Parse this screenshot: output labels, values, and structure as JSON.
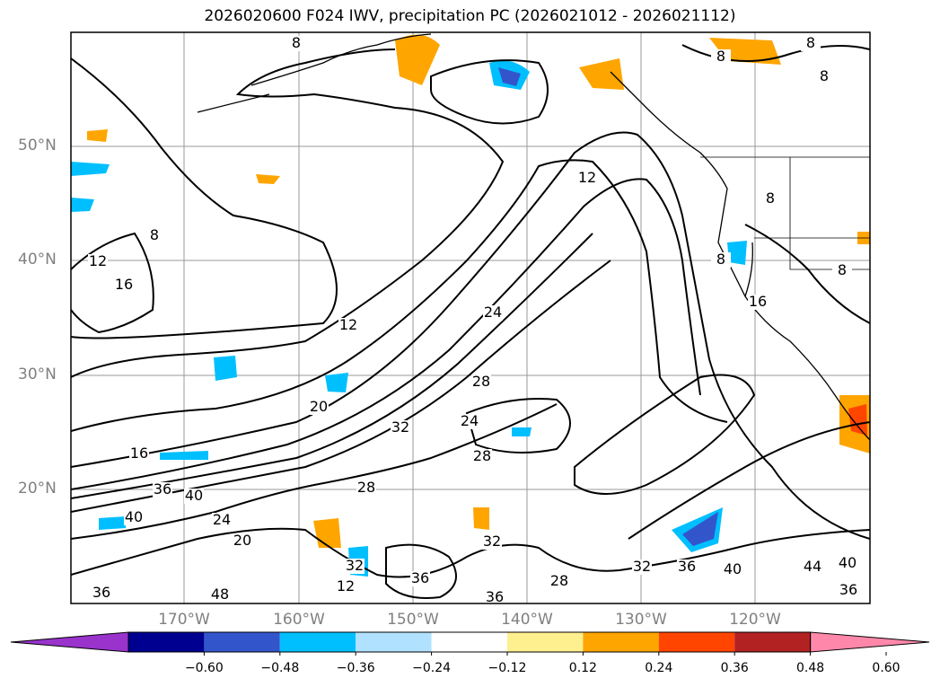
{
  "title": "2026020600 F024 IWV, precipitation PC (2026021012 - 2026021112)",
  "lat_labels": [
    "50°N",
    "40°N",
    "30°N",
    "20°N"
  ],
  "lon_labels": [
    "170°W",
    "160°W",
    "150°W",
    "140°W",
    "130°W",
    "120°W"
  ],
  "contour_labels": [
    "8",
    "8",
    "8",
    "8",
    "8",
    "8",
    "8",
    "8",
    "12",
    "12",
    "12",
    "16",
    "16",
    "16",
    "20",
    "20",
    "24",
    "24",
    "24",
    "28",
    "28",
    "28",
    "28",
    "32",
    "32",
    "32",
    "32",
    "36",
    "36",
    "36",
    "36",
    "36",
    "36",
    "40",
    "40",
    "40",
    "40",
    "44",
    "48",
    "12"
  ],
  "colorbar": {
    "ticks": [
      "−0.60",
      "−0.48",
      "−0.36",
      "−0.24",
      "−0.12",
      "0.12",
      "0.24",
      "0.36",
      "0.48",
      "0.60"
    ],
    "colors": [
      "#9933cc",
      "#000090",
      "#3355cc",
      "#00bfff",
      "#b0e2ff",
      "#ffffff",
      "#fff08f",
      "#ffa500",
      "#ff4500",
      "#b22222",
      "#ff88aa"
    ]
  },
  "colors": {
    "frame": "#000000",
    "grid": "#999999",
    "axis_label": "#808080"
  }
}
